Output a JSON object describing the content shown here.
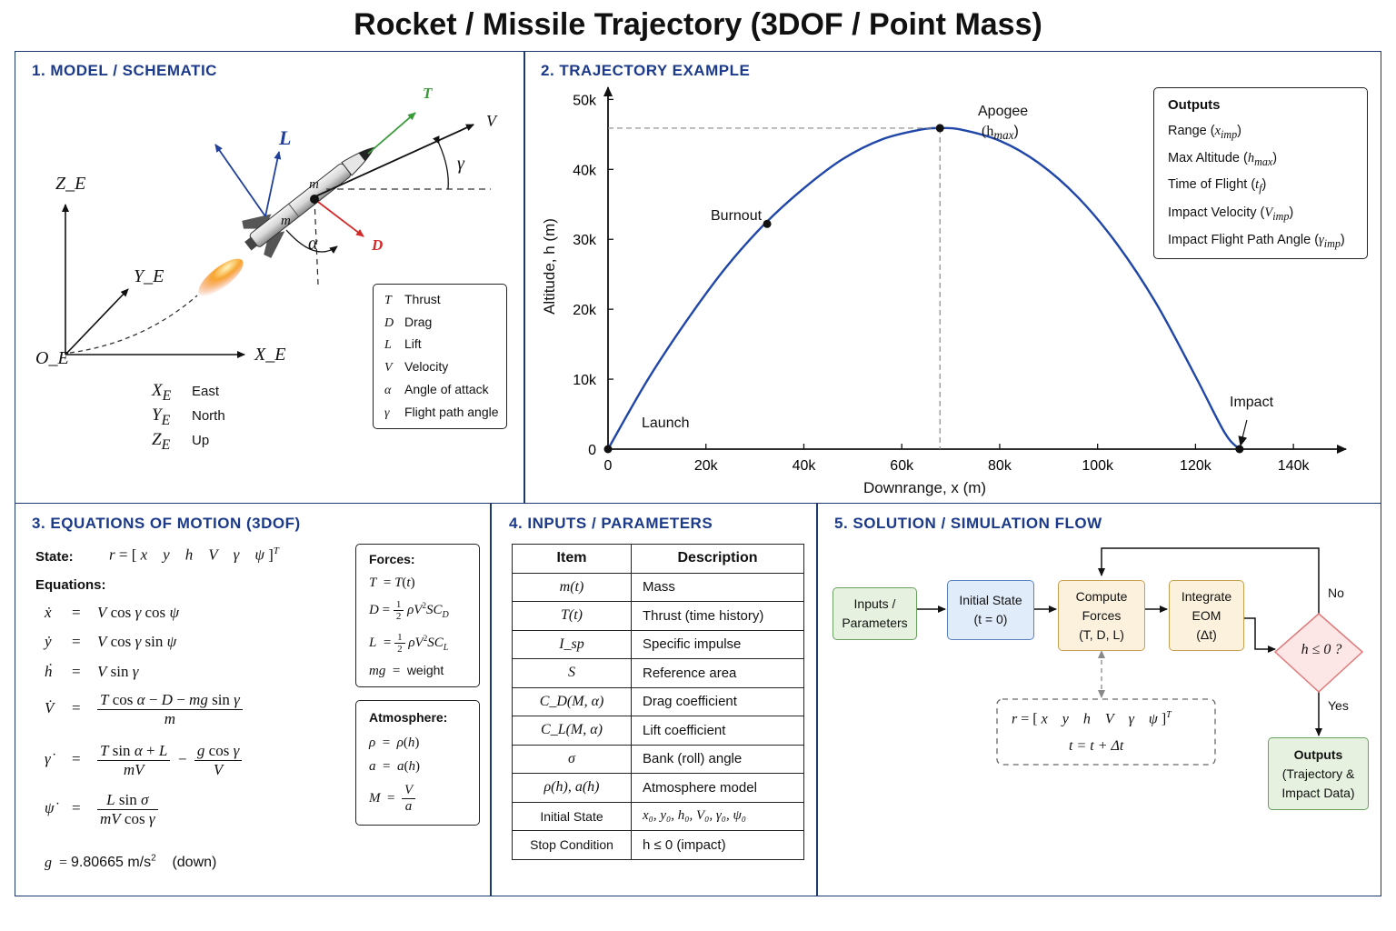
{
  "title": "Rocket / Missile Trajectory (3DOF / Point Mass)",
  "panels": {
    "model": {
      "title": "1. MODEL / SCHEMATIC",
      "axes": {
        "z": "Z_E",
        "y": "Y_E",
        "x": "X_E",
        "origin": "O_E"
      },
      "axis_meaning": [
        {
          "sym": "X",
          "sub": "E",
          "desc": "East"
        },
        {
          "sym": "Y",
          "sub": "E",
          "desc": "North"
        },
        {
          "sym": "Z",
          "sub": "E",
          "desc": "Up"
        }
      ],
      "vectors": {
        "T": "T",
        "L": "L",
        "V": "V",
        "D": "D",
        "gamma": "γ",
        "alpha": "α",
        "m": "m"
      },
      "legend": [
        {
          "sym": "T",
          "desc": "Thrust"
        },
        {
          "sym": "D",
          "desc": "Drag"
        },
        {
          "sym": "L",
          "desc": "Lift"
        },
        {
          "sym": "V",
          "desc": "Velocity"
        },
        {
          "sym": "α",
          "desc": "Angle of attack"
        },
        {
          "sym": "γ",
          "desc": "Flight path angle"
        }
      ]
    },
    "trajectory": {
      "title": "2. TRAJECTORY EXAMPLE",
      "labels": {
        "launch": "Launch",
        "burnout": "Burnout",
        "apogee": "Apogee",
        "apogee_sym": "(h",
        "impact": "Impact"
      },
      "outputs_title": "Outputs",
      "outputs": [
        {
          "text": "Range (",
          "sym": "x",
          "sub": "imp"
        },
        {
          "text": "Max Altitude (",
          "sym": "h",
          "sub": "max"
        },
        {
          "text": "Time of Flight (",
          "sym": "t",
          "sub": "f"
        },
        {
          "text": "Impact Velocity (",
          "sym": "V",
          "sub": "imp"
        },
        {
          "text": "Impact Flight Path Angle (",
          "sym": "γ",
          "sub": "imp"
        }
      ]
    },
    "eom": {
      "title": "3. EQUATIONS OF MOTION (3DOF)",
      "state_label": "State:",
      "equations_label": "Equations:",
      "forces_title": "Forces:",
      "weight_label": "weight",
      "atmosphere_title": "Atmosphere:",
      "gravity_value": "9.80665 m/s",
      "gravity_note": "(down)"
    },
    "inputs": {
      "title": "4. INPUTS / PARAMETERS",
      "headers": [
        "Item",
        "Description"
      ],
      "rows": [
        {
          "item": "m(t)",
          "desc": "Mass"
        },
        {
          "item": "T(t)",
          "desc": "Thrust (time history)"
        },
        {
          "item": "I_sp",
          "desc": "Specific impulse"
        },
        {
          "item": "S",
          "desc": "Reference area"
        },
        {
          "item": "C_D(M, α)",
          "desc": "Drag coefficient"
        },
        {
          "item": "C_L(M, α)",
          "desc": "Lift coefficient"
        },
        {
          "item": "σ",
          "desc": "Bank (roll) angle"
        },
        {
          "item": "ρ(h), a(h)",
          "desc": "Atmosphere model"
        },
        {
          "item": "Initial State",
          "desc": "x₀, y₀, h₀, V₀, γ₀, ψ₀"
        },
        {
          "item": "Stop Condition",
          "desc": "h ≤ 0 (impact)"
        }
      ]
    },
    "flow": {
      "title": "5. SOLUTION / SIMULATION FLOW",
      "inputs": [
        "Inputs /",
        "Parameters"
      ],
      "initial": [
        "Initial State",
        "(t = 0)"
      ],
      "compute": [
        "Compute",
        "Forces",
        "(T, D, L)"
      ],
      "integrate": [
        "Integrate",
        "EOM",
        "(Δt)"
      ],
      "decision": "h ≤ 0 ?",
      "no": "No",
      "yes": "Yes",
      "outputs": [
        "Outputs",
        "(Trajectory &",
        "Impact Data)"
      ],
      "update": "t = t + Δt"
    }
  },
  "chart_data": {
    "type": "line",
    "xlabel": "Downrange, x (m)",
    "ylabel": "Altitude, h (m)",
    "xlim": [
      0,
      150000
    ],
    "ylim": [
      0,
      52000
    ],
    "xticks": [
      0,
      20000,
      40000,
      60000,
      80000,
      100000,
      120000,
      140000
    ],
    "xtick_labels": [
      "0",
      "20k",
      "40k",
      "60k",
      "80k",
      "100k",
      "120k",
      "140k"
    ],
    "yticks": [
      0,
      10000,
      20000,
      30000,
      40000,
      50000
    ],
    "ytick_labels": [
      "0",
      "10k",
      "20k",
      "30k",
      "40k",
      "50k"
    ],
    "series": [
      {
        "x": [
          0,
          8000,
          16000,
          24000,
          32000,
          40000,
          48000,
          56000,
          64000,
          67800,
          72000,
          80000,
          88000,
          96000,
          104000,
          112000,
          120000,
          126000,
          129000
        ],
        "y": [
          0,
          9800,
          18300,
          25900,
          32200,
          37300,
          41500,
          44300,
          45700,
          45900,
          45700,
          44100,
          40900,
          36000,
          29300,
          20800,
          10400,
          2300,
          0
        ]
      }
    ],
    "points": [
      {
        "name": "launch",
        "x": 0,
        "y": 0
      },
      {
        "name": "burnout",
        "x": 32500,
        "y": 32200
      },
      {
        "name": "apogee",
        "x": 67800,
        "y": 45900
      },
      {
        "name": "impact",
        "x": 129000,
        "y": 0
      }
    ],
    "grid": false
  }
}
